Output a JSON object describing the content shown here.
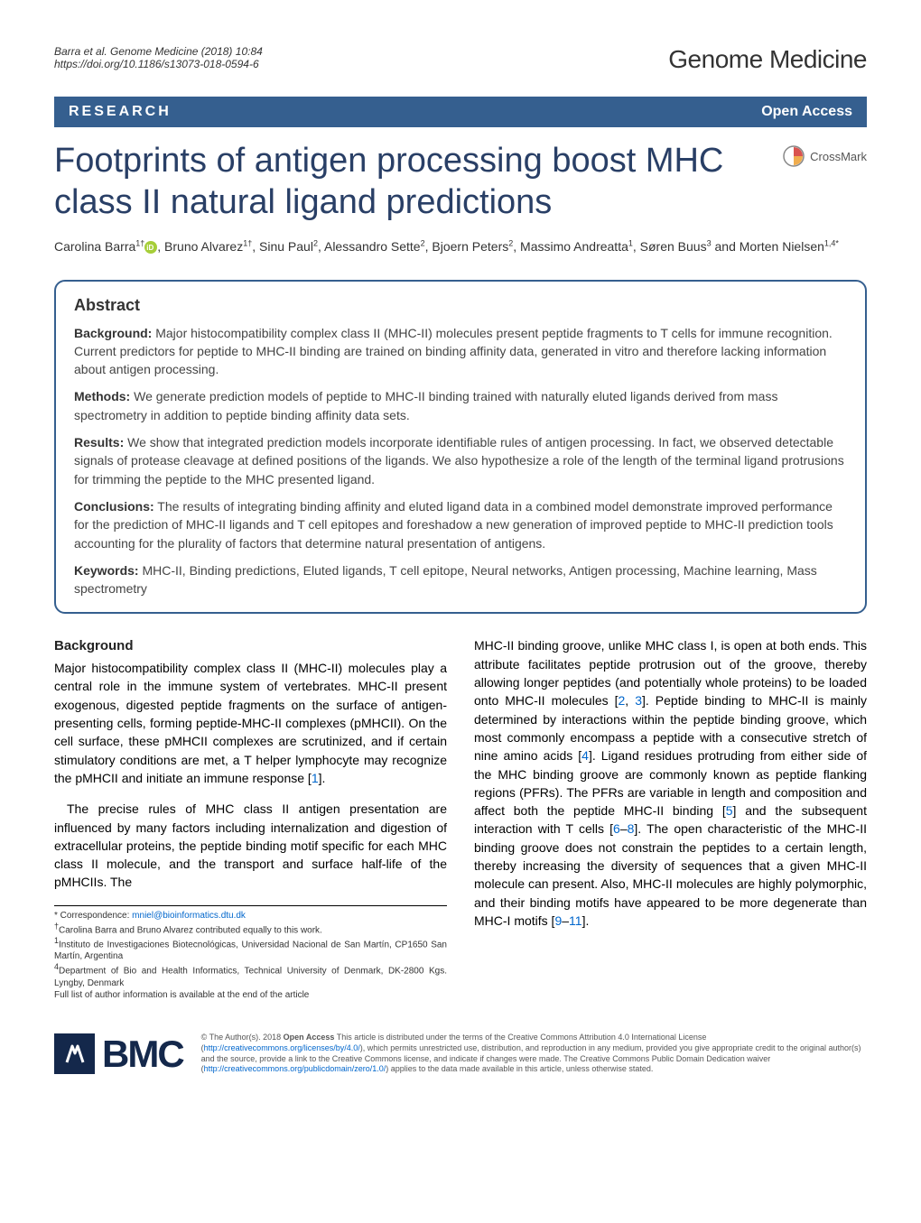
{
  "header": {
    "citation_line1": "Barra et al. Genome Medicine          (2018) 10:84",
    "citation_line2": "https://doi.org/10.1186/s13073-018-0594-6",
    "journal_brand": "Genome Medicine"
  },
  "bar": {
    "research": "RESEARCH",
    "open_access": "Open Access"
  },
  "title": "Footprints of antigen processing boost MHC class II natural ligand predictions",
  "crossmark": "CrossMark",
  "authors_html": "Carolina Barra<sup>1†</sup><span class=\"orcid\"></span>, Bruno Alvarez<sup>1†</sup>, Sinu Paul<sup>2</sup>, Alessandro Sette<sup>2</sup>, Bjoern Peters<sup>2</sup>, Massimo Andreatta<sup>1</sup>, Søren Buus<sup>3</sup> and Morten Nielsen<sup>1,4*</sup>",
  "abstract": {
    "heading": "Abstract",
    "background_label": "Background:",
    "background": " Major histocompatibility complex class II (MHC-II) molecules present peptide fragments to T cells for immune recognition. Current predictors for peptide to MHC-II binding are trained on binding affinity data, generated in vitro and therefore lacking information about antigen processing.",
    "methods_label": "Methods:",
    "methods": " We generate prediction models of peptide to MHC-II binding trained with naturally eluted ligands derived from mass spectrometry in addition to peptide binding affinity data sets.",
    "results_label": "Results:",
    "results": " We show that integrated prediction models incorporate identifiable rules of antigen processing. In fact, we observed detectable signals of protease cleavage at defined positions of the ligands. We also hypothesize a role of the length of the terminal ligand protrusions for trimming the peptide to the MHC presented ligand.",
    "conclusions_label": "Conclusions:",
    "conclusions": " The results of integrating binding affinity and eluted ligand data in a combined model demonstrate improved performance for the prediction of MHC-II ligands and T cell epitopes and foreshadow a new generation of improved peptide to MHC-II prediction tools accounting for the plurality of factors that determine natural presentation of antigens.",
    "keywords_label": "Keywords:",
    "keywords": " MHC-II, Binding predictions, Eluted ligands, T cell epitope, Neural networks, Antigen processing, Machine learning, Mass spectrometry"
  },
  "body": {
    "bg_heading": "Background",
    "col1_p1": "Major histocompatibility complex class II (MHC-II) molecules play a central role in the immune system of vertebrates. MHC-II present exogenous, digested peptide fragments on the surface of antigen-presenting cells, forming peptide-MHC-II complexes (pMHCII). On the cell surface, these pMHCII complexes are scrutinized, and if certain stimulatory conditions are met, a T helper lymphocyte may recognize the pMHCII and initiate an immune response [",
    "col1_ref1": "1",
    "col1_p1b": "].",
    "col1_p2": "The precise rules of MHC class II antigen presentation are influenced by many factors including internalization and digestion of extracellular proteins, the peptide binding motif specific for each MHC class II molecule, and the transport and surface half-life of the pMHCIIs. The",
    "col2_p1a": "MHC-II binding groove, unlike MHC class I, is open at both ends. This attribute facilitates peptide protrusion out of the groove, thereby allowing longer peptides (and potentially whole proteins) to be loaded onto MHC-II molecules [",
    "col2_ref2": "2",
    "col2_comma1": ", ",
    "col2_ref3": "3",
    "col2_p1b": "]. Peptide binding to MHC-II is mainly determined by interactions within the peptide binding groove, which most commonly encompass a peptide with a consecutive stretch of nine amino acids [",
    "col2_ref4": "4",
    "col2_p1c": "]. Ligand residues protruding from either side of the MHC binding groove are commonly known as peptide flanking regions (PFRs). The PFRs are variable in length and composition and affect both the peptide MHC-II binding [",
    "col2_ref5": "5",
    "col2_p1d": "] and the subsequent interaction with T cells [",
    "col2_ref6": "6",
    "col2_dash": "–",
    "col2_ref8": "8",
    "col2_p1e": "]. The open characteristic of the MHC-II binding groove does not constrain the peptides to a certain length, thereby increasing the diversity of sequences that a given MHC-II molecule can present. Also, MHC-II molecules are highly polymorphic, and their binding motifs have appeared to be more degenerate than MHC-I motifs [",
    "col2_ref9": "9",
    "col2_dash2": "–",
    "col2_ref11": "11",
    "col2_p1f": "]."
  },
  "footnotes": {
    "corr": "* Correspondence: ",
    "email": "mniel@bioinformatics.dtu.dk",
    "equal": "Carolina Barra and Bruno Alvarez contributed equally to this work.",
    "aff1": "Instituto de Investigaciones Biotecnológicas, Universidad Nacional de San Martín, CP1650 San Martín, Argentina",
    "aff4": "Department of Bio and Health Informatics, Technical University of Denmark, DK-2800 Kgs. Lyngby, Denmark",
    "full": "Full list of author information is available at the end of the article"
  },
  "footer": {
    "bmc": "BMC",
    "license_a": "© The Author(s). 2018 ",
    "license_oa": "Open Access",
    "license_b": " This article is distributed under the terms of the Creative Commons Attribution 4.0 International License (",
    "license_url1": "http://creativecommons.org/licenses/by/4.0/",
    "license_c": "), which permits unrestricted use, distribution, and reproduction in any medium, provided you give appropriate credit to the original author(s) and the source, provide a link to the Creative Commons license, and indicate if changes were made. The Creative Commons Public Domain Dedication waiver (",
    "license_url2": "http://creativecommons.org/publicdomain/zero/1.0/",
    "license_d": ") applies to the data made available in this article, unless otherwise stated."
  },
  "colors": {
    "bar_bg": "#355f8f",
    "title_color": "#293f66",
    "link_color": "#0066cc",
    "bmc_color": "#14284b"
  }
}
